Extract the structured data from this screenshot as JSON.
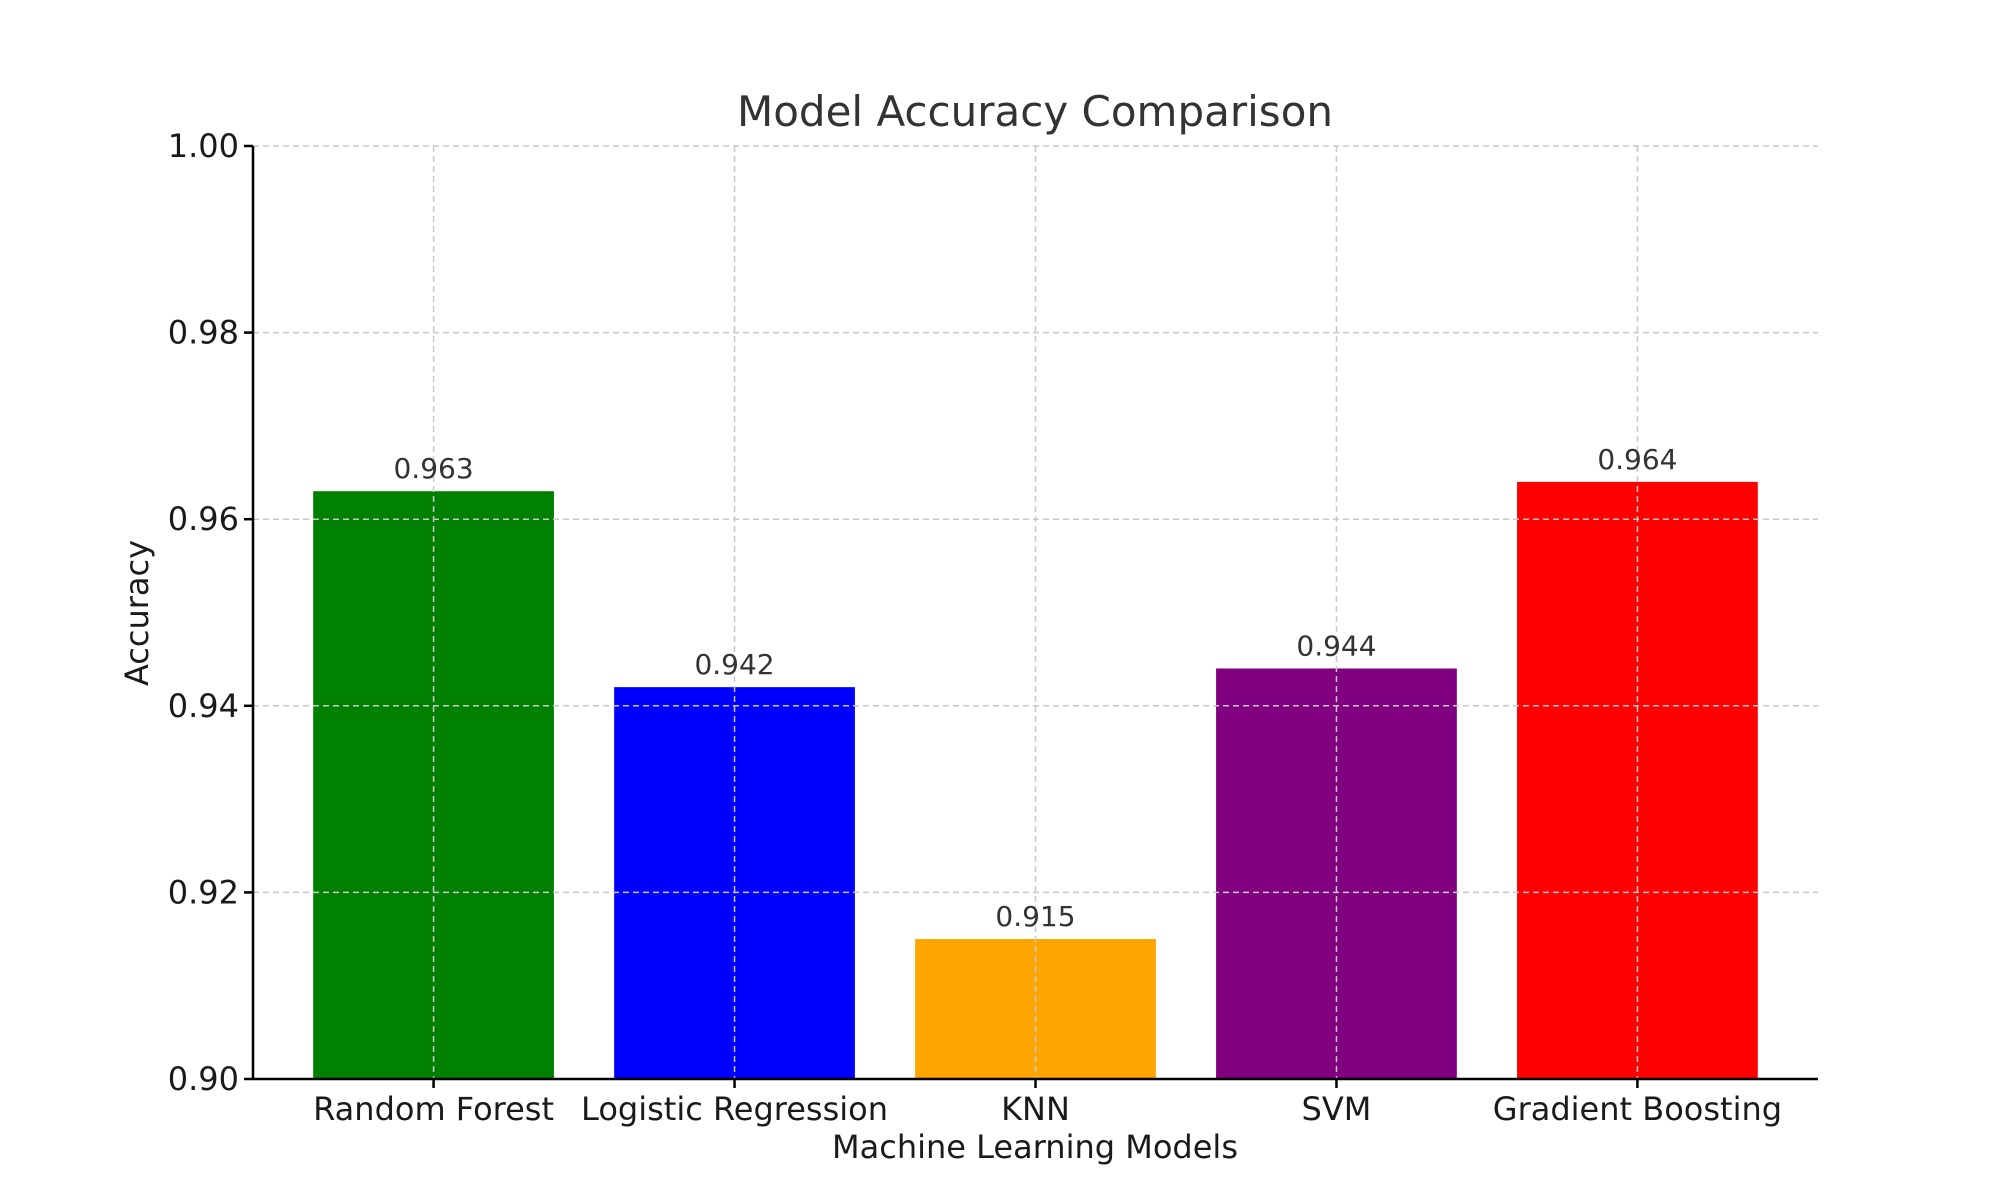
{
  "chart_data": {
    "type": "bar",
    "title": "Model Accuracy Comparison",
    "xlabel": "Machine Learning Models",
    "ylabel": "Accuracy",
    "categories": [
      "Random Forest",
      "Logistic Regression",
      "KNN",
      "SVM",
      "Gradient Boosting"
    ],
    "values": [
      0.963,
      0.942,
      0.915,
      0.944,
      0.964
    ],
    "value_labels": [
      "0.963",
      "0.942",
      "0.915",
      "0.944",
      "0.964"
    ],
    "colors": [
      "#008000",
      "#0000ff",
      "#ffa500",
      "#800080",
      "#ff0000"
    ],
    "ylim": [
      0.9,
      1.0
    ],
    "yticks": [
      0.9,
      0.92,
      0.94,
      0.96,
      0.98,
      1.0
    ],
    "ytick_labels": [
      "0.90",
      "0.92",
      "0.94",
      "0.96",
      "0.98",
      "1.00"
    ],
    "grid": true,
    "legend": false
  }
}
